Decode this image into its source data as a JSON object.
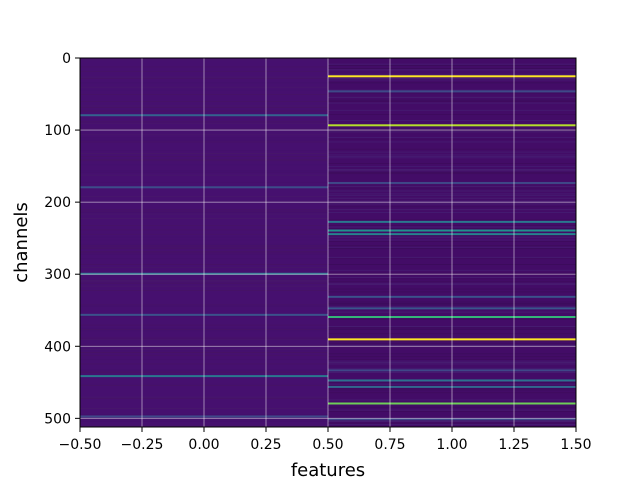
{
  "chart_data": {
    "type": "heatmap",
    "title": "",
    "xlabel": "features",
    "ylabel": "channels",
    "xlim": [
      -0.5,
      1.5
    ],
    "ylim": [
      512,
      0
    ],
    "x_ticks": [
      "−0.50",
      "−0.25",
      "0.00",
      "0.25",
      "0.50",
      "0.75",
      "1.00",
      "1.25",
      "1.50"
    ],
    "x_tick_values": [
      -0.5,
      -0.25,
      0.0,
      0.25,
      0.5,
      0.75,
      1.0,
      1.25,
      1.5
    ],
    "y_ticks": [
      "0",
      "100",
      "200",
      "300",
      "400",
      "500"
    ],
    "y_tick_values": [
      0,
      100,
      200,
      300,
      400,
      500
    ],
    "grid": true,
    "colormap": "viridis",
    "columns": [
      0,
      1
    ],
    "n_channels": 512,
    "base_colors": [
      "#46106f",
      "#430c67"
    ],
    "highlight_rows": {
      "col0": [
        {
          "channel": 78,
          "color": "#33638d"
        },
        {
          "channel": 178,
          "color": "#3d4d8a"
        },
        {
          "channel": 298,
          "color": "#2c728e"
        },
        {
          "channel": 355,
          "color": "#3b528b"
        },
        {
          "channel": 440,
          "color": "#2a788e"
        },
        {
          "channel": 496,
          "color": "#3f4889"
        }
      ],
      "col1": [
        {
          "channel": 24,
          "color": "#fde725"
        },
        {
          "channel": 45,
          "color": "#3e4989"
        },
        {
          "channel": 92,
          "color": "#b5de2b"
        },
        {
          "channel": 172,
          "color": "#3f4788"
        },
        {
          "channel": 226,
          "color": "#2a788e"
        },
        {
          "channel": 238,
          "color": "#21918c"
        },
        {
          "channel": 243,
          "color": "#26828e"
        },
        {
          "channel": 330,
          "color": "#3b528b"
        },
        {
          "channel": 346,
          "color": "#39568c"
        },
        {
          "channel": 358,
          "color": "#35b779"
        },
        {
          "channel": 389,
          "color": "#fde725"
        },
        {
          "channel": 432,
          "color": "#3f4788"
        },
        {
          "channel": 446,
          "color": "#2c728e"
        },
        {
          "channel": 455,
          "color": "#31688e"
        },
        {
          "channel": 478,
          "color": "#6ece58"
        },
        {
          "channel": 500,
          "color": "#3e4989"
        }
      ]
    }
  }
}
